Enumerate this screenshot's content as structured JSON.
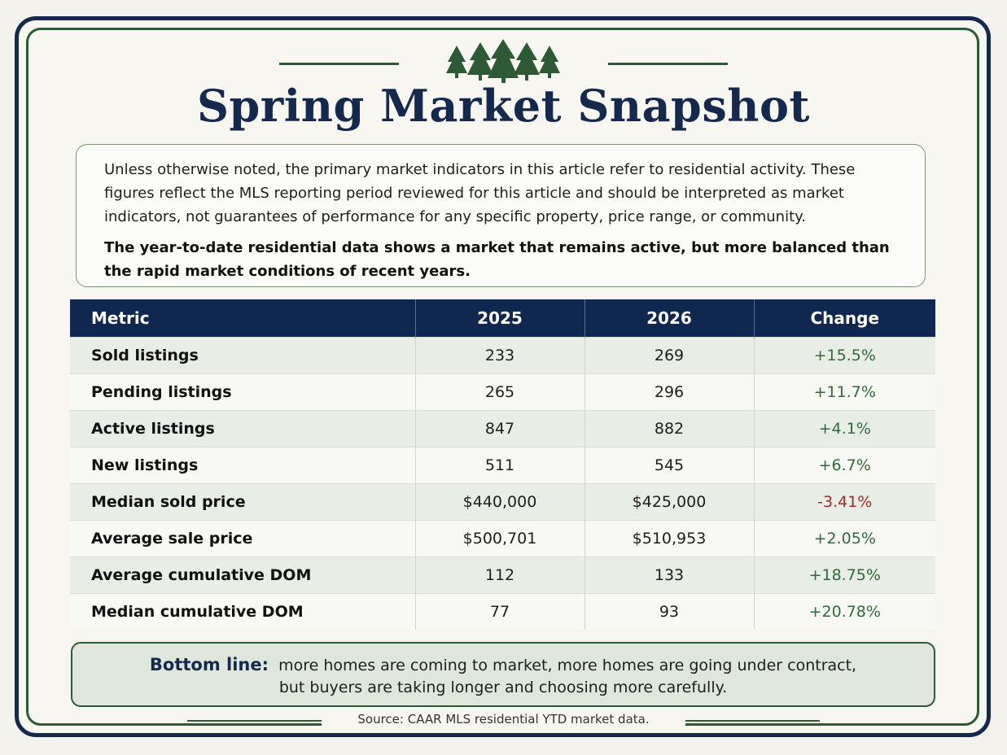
{
  "title": "Spring Market Snapshot",
  "intro": {
    "paragraph": "Unless otherwise noted, the primary market indicators in this article refer to residential activity. These figures reflect the MLS reporting period reviewed for this article and should be interpreted as market indicators, not guarantees of performance for any specific property, price range, or community.",
    "highlight": "The year-to-date residential data shows a market that remains active, but more balanced than the rapid market conditions of recent years."
  },
  "table": {
    "headers": [
      "Metric",
      "2025",
      "2026",
      "Change"
    ],
    "rows": [
      {
        "metric": "Sold listings",
        "y2025": "233",
        "y2026": "269",
        "change": "+15.5%",
        "direction": "up"
      },
      {
        "metric": "Pending listings",
        "y2025": "265",
        "y2026": "296",
        "change": "+11.7%",
        "direction": "up"
      },
      {
        "metric": "Active listings",
        "y2025": "847",
        "y2026": "882",
        "change": "+4.1%",
        "direction": "up"
      },
      {
        "metric": "New listings",
        "y2025": "511",
        "y2026": "545",
        "change": "+6.7%",
        "direction": "up"
      },
      {
        "metric": "Median sold price",
        "y2025": "$440,000",
        "y2026": "$425,000",
        "change": "-3.41%",
        "direction": "down"
      },
      {
        "metric": "Average sale price",
        "y2025": "$500,701",
        "y2026": "$510,953",
        "change": "+2.05%",
        "direction": "up"
      },
      {
        "metric": "Average cumulative DOM",
        "y2025": "112",
        "y2026": "133",
        "change": "+18.75%",
        "direction": "up"
      },
      {
        "metric": "Median cumulative DOM",
        "y2025": "77",
        "y2026": "93",
        "change": "+20.78%",
        "direction": "up"
      }
    ]
  },
  "bottom_line": {
    "label": "Bottom line:",
    "line1": "more homes are coming to market, more homes are going under contract,",
    "line2": "but buyers are taking longer and choosing more carefully."
  },
  "source": "Source: CAAR MLS residential YTD market data.",
  "colors": {
    "navy": "#15294f",
    "forest_green": "#2d5a34",
    "positive": "#2f6b3a",
    "negative": "#a52a2a"
  },
  "icons": {
    "header_decoration": "pine-trees-icon"
  }
}
